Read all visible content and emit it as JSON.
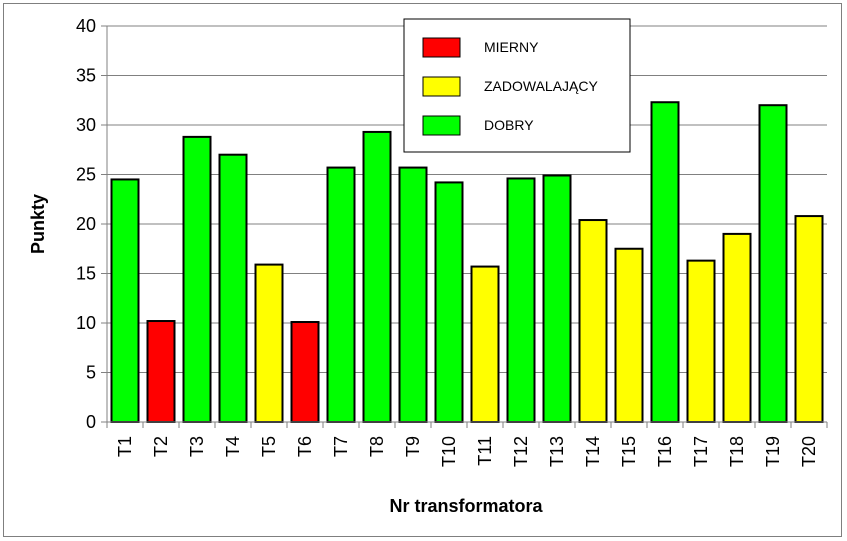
{
  "chart_data": {
    "type": "bar",
    "title": "",
    "xlabel": "Nr transformatora",
    "ylabel": "Punkty",
    "ylim": [
      0,
      40
    ],
    "yticks": [
      0,
      5,
      10,
      15,
      20,
      25,
      30,
      35,
      40
    ],
    "grid": true,
    "legend_position": "top-center",
    "categories": [
      "T1",
      "T2",
      "T3",
      "T4",
      "T5",
      "T6",
      "T7",
      "T8",
      "T9",
      "T10",
      "T11",
      "T12",
      "T13",
      "T14",
      "T15",
      "T16",
      "T17",
      "T18",
      "T19",
      "T20"
    ],
    "values": [
      24.5,
      10.2,
      28.8,
      27.0,
      15.9,
      10.1,
      25.7,
      29.3,
      25.7,
      24.2,
      15.7,
      24.6,
      24.9,
      20.4,
      17.5,
      32.3,
      16.3,
      19.0,
      32.0,
      20.8
    ],
    "ratings": [
      "DOBRY",
      "MIERNY",
      "DOBRY",
      "DOBRY",
      "ZADOWALAJĄCY",
      "MIERNY",
      "DOBRY",
      "DOBRY",
      "DOBRY",
      "DOBRY",
      "ZADOWALAJĄCY",
      "DOBRY",
      "DOBRY",
      "ZADOWALAJĄCY",
      "ZADOWALAJĄCY",
      "DOBRY",
      "ZADOWALAJĄCY",
      "ZADOWALAJĄCY",
      "DOBRY",
      "ZADOWALAJĄCY"
    ],
    "legend": [
      {
        "label": "MIERNY",
        "color": "#ff0000"
      },
      {
        "label": "ZADOWALAJĄCY",
        "color": "#ffff00"
      },
      {
        "label": "DOBRY",
        "color": "#00ff00"
      }
    ]
  }
}
